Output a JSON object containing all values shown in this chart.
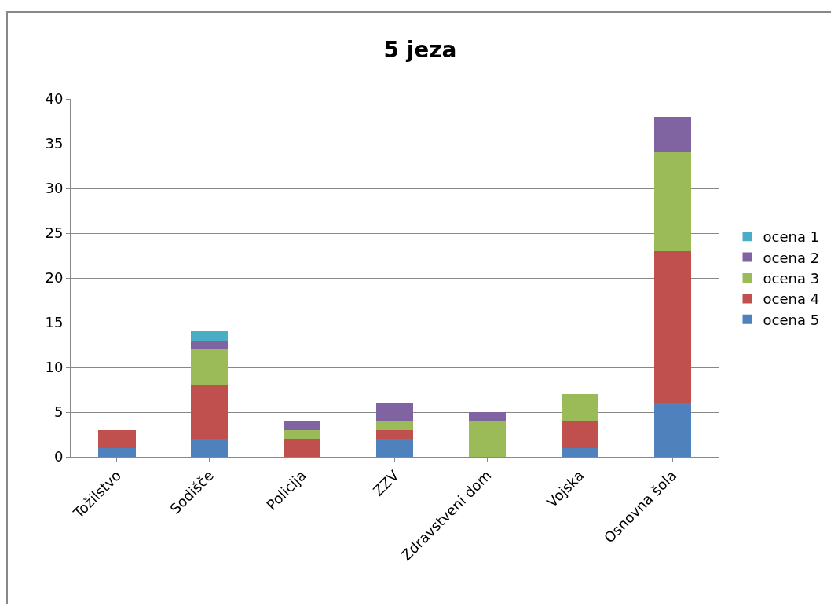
{
  "chart_data": {
    "type": "bar",
    "title": "5 jeza",
    "stacked": true,
    "categories": [
      "Tožilstvo",
      "Sodišče",
      "Policija",
      "ZZV",
      "Zdravstveni dom",
      "Vojska",
      "Osnovna šola"
    ],
    "series": [
      {
        "name": "ocena 5",
        "color": "#4f81bd",
        "values": [
          1,
          2,
          null,
          2,
          null,
          1,
          6
        ]
      },
      {
        "name": "ocena 4",
        "color": "#c0504d",
        "values": [
          2,
          6,
          2,
          1,
          null,
          3,
          17
        ]
      },
      {
        "name": "ocena 3",
        "color": "#9bbb59",
        "values": [
          null,
          4,
          1,
          1,
          4,
          3,
          11
        ]
      },
      {
        "name": "ocena 2",
        "color": "#8064a2",
        "values": [
          null,
          1,
          1,
          2,
          1,
          null,
          4
        ]
      },
      {
        "name": "ocena 1",
        "color": "#4bacc6",
        "values": [
          null,
          1,
          null,
          null,
          null,
          null,
          null
        ]
      }
    ],
    "ylim": [
      0,
      40
    ],
    "yticks": [
      0,
      5,
      10,
      15,
      20,
      25,
      30,
      35,
      40
    ],
    "grid": "y",
    "legend": "right"
  }
}
